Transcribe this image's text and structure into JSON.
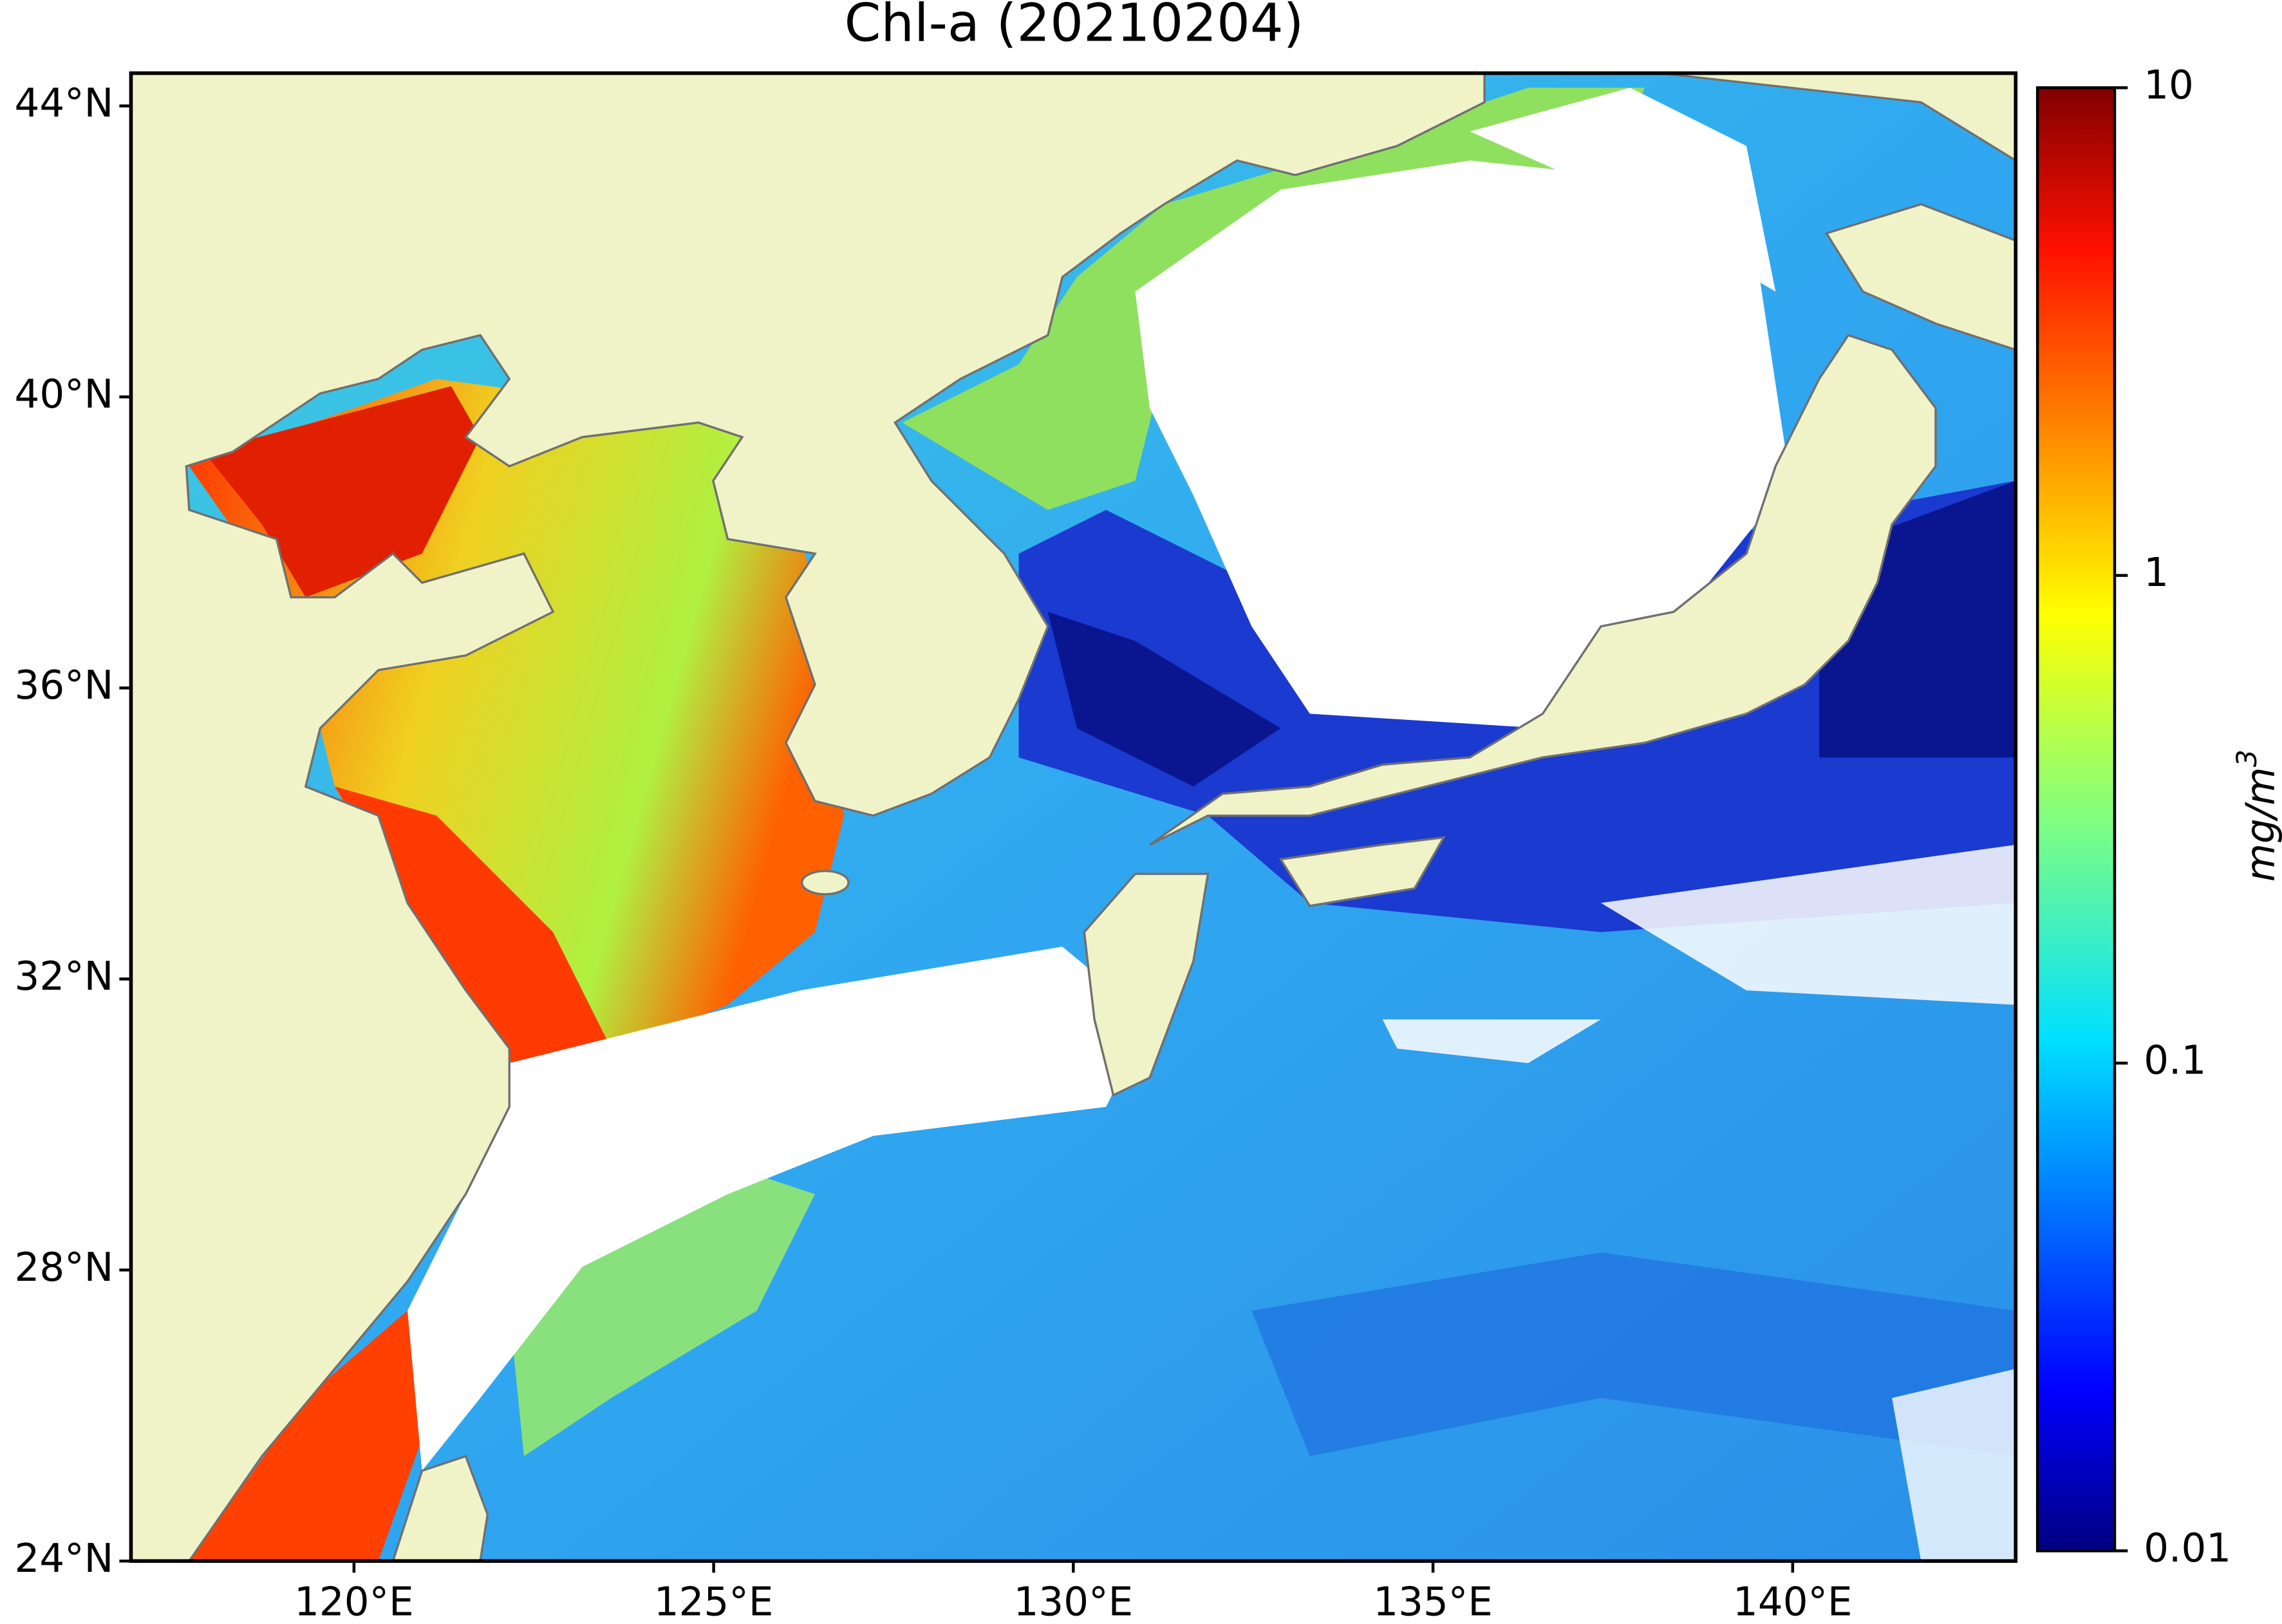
{
  "title": "Chl-a (20210204)",
  "map": {
    "xlim": [
      116.9,
      143.1
    ],
    "ylim": [
      24,
      44.45
    ],
    "xticks": [
      {
        "value": 120,
        "label": "120°E"
      },
      {
        "value": 125,
        "label": "125°E"
      },
      {
        "value": 130,
        "label": "130°E"
      },
      {
        "value": 135,
        "label": "135°E"
      },
      {
        "value": 140,
        "label": "140°E"
      }
    ],
    "yticks": [
      {
        "value": 24,
        "label": "24°N"
      },
      {
        "value": 28,
        "label": "28°N"
      },
      {
        "value": 32,
        "label": "32°N"
      },
      {
        "value": 36,
        "label": "36°N"
      },
      {
        "value": 40,
        "label": "40°N"
      },
      {
        "value": 44,
        "label": "44°N"
      }
    ]
  },
  "colorbar": {
    "scale": "log",
    "lim": [
      0.01,
      10
    ],
    "ticks": [
      0.01,
      0.1,
      1,
      10
    ],
    "label": "mg/m",
    "label_exponent": "3"
  }
}
